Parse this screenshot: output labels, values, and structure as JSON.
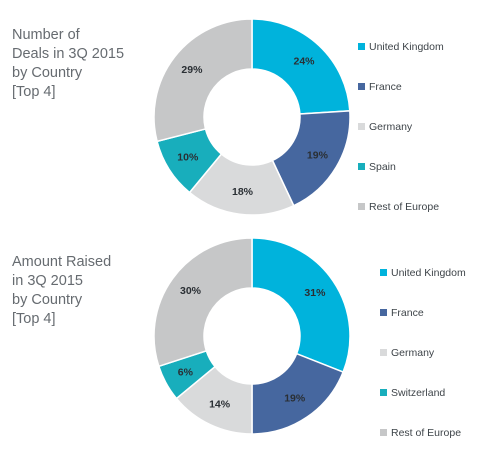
{
  "chart_data": [
    {
      "type": "pie",
      "title": "Number of\nDeals in 3Q 2015\nby Country\n[Top 4]",
      "categories": [
        "United Kingdom",
        "France",
        "Germany",
        "Spain",
        "Rest of Europe"
      ],
      "values": [
        24,
        19,
        18,
        10,
        29
      ],
      "value_labels": [
        "24%",
        "19%",
        "18%",
        "10%",
        "29%"
      ],
      "colors": [
        "#00b3dc",
        "#46679f",
        "#d9dadb",
        "#18aebc",
        "#c6c7c8"
      ],
      "legend_position": "right",
      "style": "donut"
    },
    {
      "type": "pie",
      "title": "Amount Raised\nin 3Q 2015\nby Country\n[Top 4]",
      "categories": [
        "United Kingdom",
        "France",
        "Germany",
        "Switzerland",
        "Rest of Europe"
      ],
      "values": [
        31,
        19,
        14,
        6,
        30
      ],
      "value_labels": [
        "31%",
        "19%",
        "14%",
        "6%",
        "30%"
      ],
      "colors": [
        "#00b3dc",
        "#46679f",
        "#d9dadb",
        "#18aebc",
        "#c6c7c8"
      ],
      "legend_position": "right",
      "style": "donut"
    }
  ]
}
